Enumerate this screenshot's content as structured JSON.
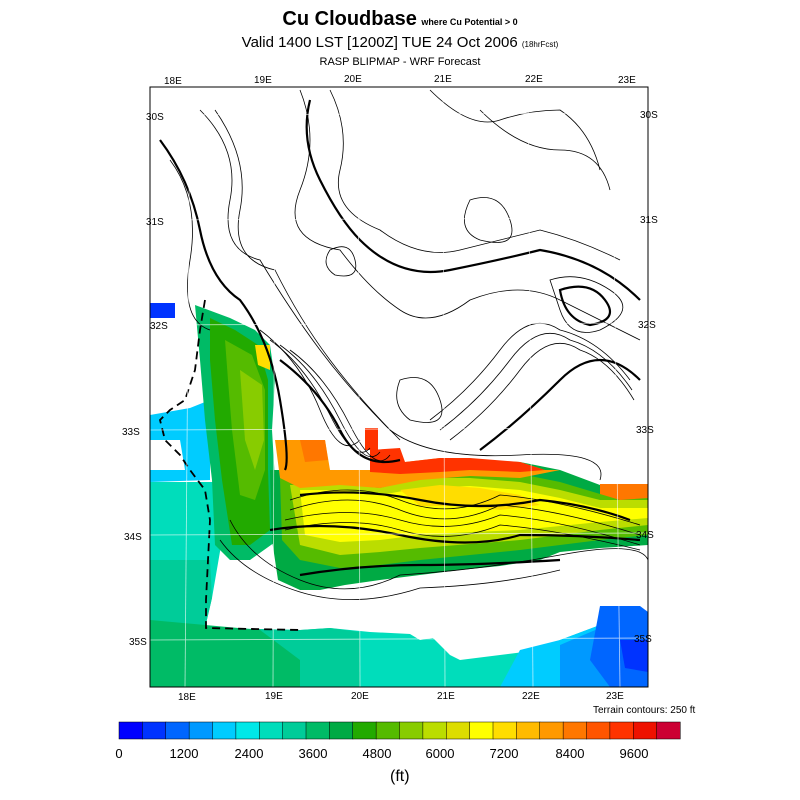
{
  "title": {
    "main": "Cu Cloudbase",
    "qualifier": "where Cu Potential > 0",
    "valid": "Valid 1400 LST [1200Z] TUE 24 Oct 2006",
    "forecast": "(18hrFcst)",
    "subtitle": "RASP BLIPMAP - WRF Forecast"
  },
  "top_lon_labels": [
    "18E",
    "19E",
    "20E",
    "21E",
    "22E",
    "23E"
  ],
  "bottom_lon_labels": [
    "18E",
    "19E",
    "20E",
    "21E",
    "22E",
    "23E"
  ],
  "lat_labels": [
    "30S",
    "31S",
    "32S",
    "33S",
    "34S",
    "35S"
  ],
  "terrain_note": "Terrain contours: 250 ft",
  "colorbar": {
    "labels": [
      "0",
      "1200",
      "2400",
      "3600",
      "4800",
      "6000",
      "7200",
      "8400",
      "9600"
    ],
    "units": "(ft)",
    "colors": [
      "#0000ff",
      "#0033ff",
      "#0066ff",
      "#0099ff",
      "#00ccff",
      "#00e8e8",
      "#00ddbb",
      "#00cc99",
      "#00bb66",
      "#00aa44",
      "#22aa00",
      "#55bb00",
      "#88cc00",
      "#bbdd00",
      "#dddd00",
      "#ffff00",
      "#ffdd00",
      "#ffbb00",
      "#ff9900",
      "#ff7700",
      "#ff5500",
      "#ff3300",
      "#ee1100",
      "#cc0033"
    ]
  }
}
